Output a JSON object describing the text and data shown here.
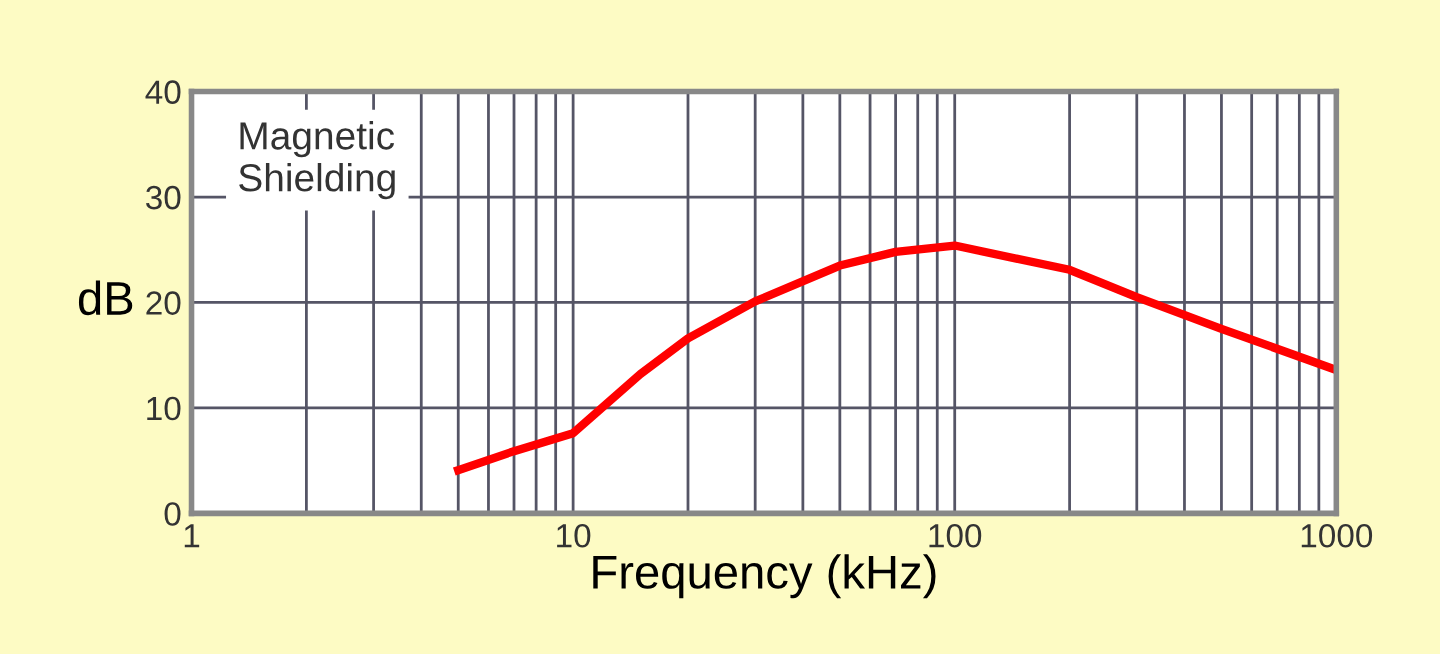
{
  "chart_data": {
    "type": "line",
    "xlabel": "Frequency (kHz)",
    "ylabel": "dB",
    "log": "x",
    "grid": true,
    "marker": "none",
    "line_style": "solid",
    "annotations": [
      "Magnetic\nShielding"
    ],
    "xlim": [
      1,
      1000
    ],
    "xticks": [
      1,
      10,
      100,
      1000
    ],
    "ylim": [
      0,
      40
    ],
    "yticks": [
      0,
      10,
      20,
      30,
      40
    ],
    "series": [
      {
        "color": "#ff0000",
        "x": [
          5,
          7,
          10,
          15,
          20,
          30,
          50,
          70,
          100,
          200,
          300,
          500,
          1000
        ],
        "values": [
          4.1,
          5.9,
          7.6,
          13.2,
          16.6,
          20.1,
          23.5,
          24.8,
          25.4,
          23.1,
          20.5,
          17.5,
          13.6
        ]
      }
    ]
  }
}
